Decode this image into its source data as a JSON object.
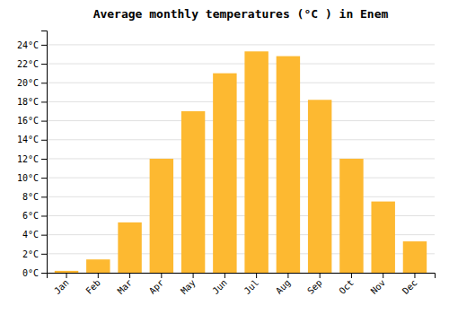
{
  "chart_data": {
    "type": "bar",
    "title": "Average monthly temperatures (°C ) in Enem",
    "categories": [
      "Jan",
      "Feb",
      "Mar",
      "Apr",
      "May",
      "Jun",
      "Jul",
      "Aug",
      "Sep",
      "Oct",
      "Nov",
      "Dec"
    ],
    "values": [
      0.2,
      1.4,
      5.3,
      12.0,
      17.0,
      21.0,
      23.3,
      22.8,
      18.2,
      12.0,
      7.5,
      3.3
    ],
    "color": "#FDB931",
    "ylim": [
      0,
      25.5
    ],
    "yticks": [
      {
        "value": 0,
        "label": "0°C"
      },
      {
        "value": 2,
        "label": "2°C"
      },
      {
        "value": 4,
        "label": "4°C"
      },
      {
        "value": 6,
        "label": "6°C"
      },
      {
        "value": 8,
        "label": "8°C"
      },
      {
        "value": 10,
        "label": "10°C"
      },
      {
        "value": 12,
        "label": "12°C"
      },
      {
        "value": 14,
        "label": "14°C"
      },
      {
        "value": 16,
        "label": "16°C"
      },
      {
        "value": 18,
        "label": "18°C"
      },
      {
        "value": 20,
        "label": "20°C"
      },
      {
        "value": 22,
        "label": "22°C"
      },
      {
        "value": 24,
        "label": "24°C"
      }
    ],
    "grid": true
  }
}
